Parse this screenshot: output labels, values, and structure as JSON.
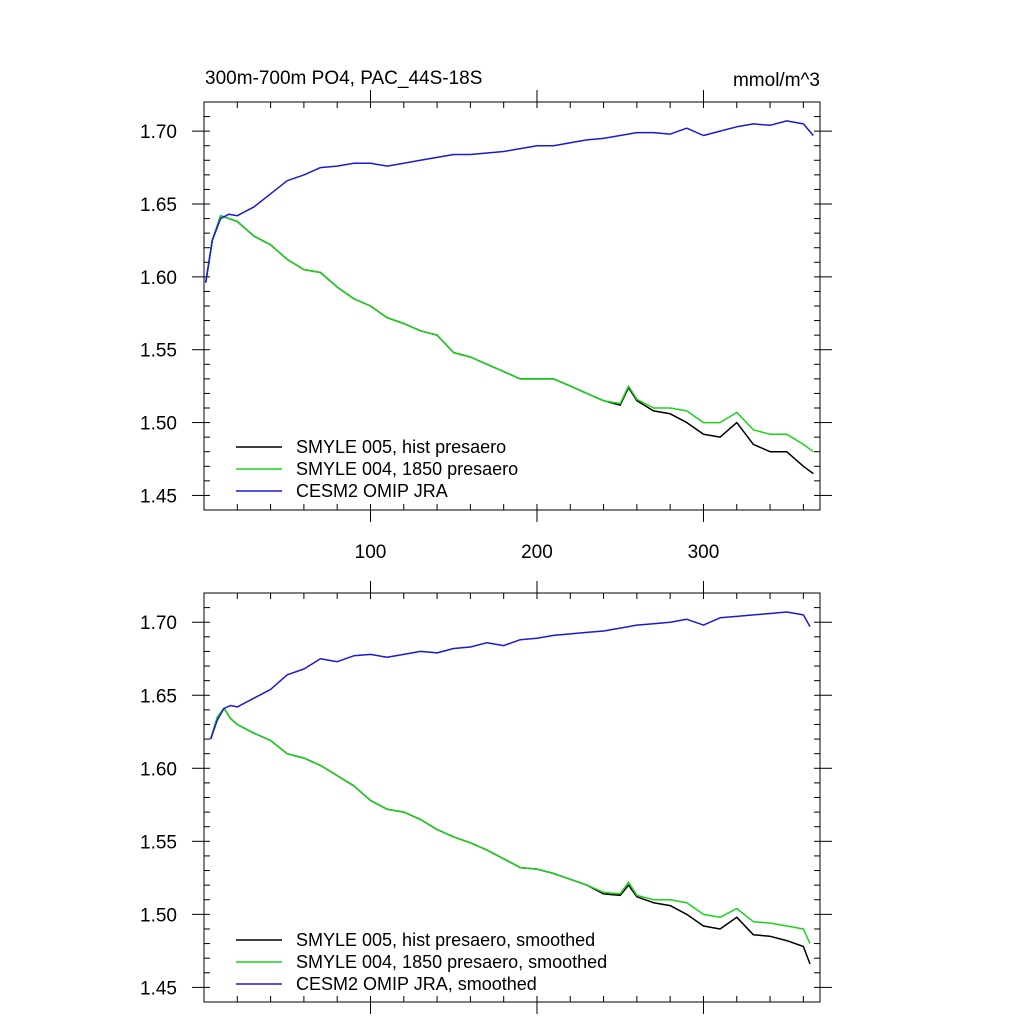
{
  "chart_data": [
    {
      "type": "line",
      "title": "300m-700m PO4, PAC_44S-18S",
      "units": "mmol/m^3",
      "xlim": [
        0,
        370
      ],
      "ylim": [
        1.44,
        1.72
      ],
      "x_ticks": [
        100,
        200,
        300
      ],
      "y_ticks": [
        1.45,
        1.5,
        1.55,
        1.6,
        1.65,
        1.7
      ],
      "y_tick_labels": [
        "1.45",
        "1.50",
        "1.55",
        "1.60",
        "1.65",
        "1.70"
      ],
      "x_tick_labels": [
        "100",
        "200",
        "300"
      ],
      "legend_position": "bottom-left",
      "series": [
        {
          "name": "SMYLE 005, hist presaero",
          "color": "#000000",
          "x": [
            1,
            5,
            10,
            15,
            20,
            30,
            40,
            50,
            60,
            70,
            80,
            90,
            100,
            110,
            120,
            130,
            140,
            150,
            160,
            170,
            180,
            190,
            200,
            210,
            220,
            230,
            240,
            250,
            255,
            260,
            270,
            280,
            290,
            300,
            310,
            320,
            330,
            340,
            350,
            360,
            366
          ],
          "y": [
            1.596,
            1.625,
            1.642,
            1.64,
            1.638,
            1.628,
            1.622,
            1.612,
            1.605,
            1.603,
            1.593,
            1.585,
            1.58,
            1.572,
            1.568,
            1.563,
            1.56,
            1.548,
            1.545,
            1.54,
            1.535,
            1.53,
            1.53,
            1.53,
            1.525,
            1.52,
            1.515,
            1.512,
            1.524,
            1.515,
            1.508,
            1.506,
            1.5,
            1.492,
            1.49,
            1.5,
            1.485,
            1.48,
            1.48,
            1.47,
            1.465
          ]
        },
        {
          "name": "SMYLE 004, 1850 presaero",
          "color": "#1ad41a",
          "x": [
            1,
            5,
            10,
            15,
            20,
            30,
            40,
            50,
            60,
            70,
            80,
            90,
            100,
            110,
            120,
            130,
            140,
            150,
            160,
            170,
            180,
            190,
            200,
            210,
            220,
            230,
            240,
            250,
            255,
            260,
            270,
            280,
            290,
            300,
            310,
            320,
            330,
            340,
            350,
            360,
            366
          ],
          "y": [
            1.596,
            1.625,
            1.642,
            1.64,
            1.638,
            1.628,
            1.622,
            1.612,
            1.605,
            1.603,
            1.593,
            1.585,
            1.58,
            1.572,
            1.568,
            1.563,
            1.56,
            1.548,
            1.545,
            1.54,
            1.535,
            1.53,
            1.53,
            1.53,
            1.525,
            1.52,
            1.515,
            1.513,
            1.525,
            1.516,
            1.51,
            1.51,
            1.508,
            1.5,
            1.5,
            1.507,
            1.495,
            1.492,
            1.492,
            1.485,
            1.48
          ]
        },
        {
          "name": "CESM2 OMIP JRA",
          "color": "#1a1ad4",
          "x": [
            1,
            5,
            10,
            15,
            20,
            30,
            40,
            50,
            60,
            70,
            80,
            90,
            100,
            110,
            120,
            130,
            140,
            150,
            160,
            170,
            180,
            190,
            200,
            210,
            220,
            230,
            240,
            250,
            260,
            270,
            280,
            290,
            300,
            310,
            320,
            330,
            340,
            350,
            360,
            366
          ],
          "y": [
            1.596,
            1.625,
            1.64,
            1.643,
            1.642,
            1.648,
            1.657,
            1.666,
            1.67,
            1.675,
            1.676,
            1.678,
            1.678,
            1.676,
            1.678,
            1.68,
            1.682,
            1.684,
            1.684,
            1.685,
            1.686,
            1.688,
            1.69,
            1.69,
            1.692,
            1.694,
            1.695,
            1.697,
            1.699,
            1.699,
            1.698,
            1.702,
            1.697,
            1.7,
            1.703,
            1.705,
            1.704,
            1.707,
            1.705,
            1.697
          ]
        }
      ]
    },
    {
      "type": "line",
      "xlim": [
        0,
        370
      ],
      "ylim": [
        1.44,
        1.72
      ],
      "x_ticks": [
        100,
        200,
        300
      ],
      "y_ticks": [
        1.45,
        1.5,
        1.55,
        1.6,
        1.65,
        1.7
      ],
      "y_tick_labels": [
        "1.45",
        "1.50",
        "1.55",
        "1.60",
        "1.65",
        "1.70"
      ],
      "legend_position": "bottom-left",
      "series": [
        {
          "name": "SMYLE 005, hist presaero, smoothed",
          "color": "#000000",
          "x": [
            4,
            8,
            12,
            16,
            20,
            30,
            40,
            50,
            60,
            70,
            80,
            90,
            100,
            110,
            120,
            130,
            140,
            150,
            160,
            170,
            180,
            190,
            200,
            210,
            220,
            230,
            240,
            250,
            255,
            260,
            270,
            280,
            290,
            300,
            310,
            320,
            330,
            340,
            350,
            360,
            364
          ],
          "y": [
            1.62,
            1.635,
            1.641,
            1.634,
            1.63,
            1.624,
            1.619,
            1.61,
            1.607,
            1.602,
            1.595,
            1.588,
            1.578,
            1.572,
            1.57,
            1.565,
            1.558,
            1.553,
            1.549,
            1.544,
            1.538,
            1.532,
            1.531,
            1.528,
            1.524,
            1.52,
            1.514,
            1.513,
            1.52,
            1.512,
            1.508,
            1.506,
            1.5,
            1.492,
            1.49,
            1.498,
            1.486,
            1.485,
            1.482,
            1.478,
            1.466
          ]
        },
        {
          "name": "SMYLE 004, 1850 presaero, smoothed",
          "color": "#1ad41a",
          "x": [
            4,
            8,
            12,
            16,
            20,
            30,
            40,
            50,
            60,
            70,
            80,
            90,
            100,
            110,
            120,
            130,
            140,
            150,
            160,
            170,
            180,
            190,
            200,
            210,
            220,
            230,
            240,
            250,
            255,
            260,
            270,
            280,
            290,
            300,
            310,
            320,
            330,
            340,
            350,
            360,
            364
          ],
          "y": [
            1.62,
            1.635,
            1.641,
            1.634,
            1.63,
            1.624,
            1.619,
            1.61,
            1.607,
            1.602,
            1.595,
            1.588,
            1.578,
            1.572,
            1.57,
            1.565,
            1.558,
            1.553,
            1.549,
            1.544,
            1.538,
            1.532,
            1.531,
            1.528,
            1.524,
            1.52,
            1.515,
            1.514,
            1.522,
            1.513,
            1.51,
            1.51,
            1.508,
            1.5,
            1.498,
            1.504,
            1.495,
            1.494,
            1.492,
            1.49,
            1.48
          ]
        },
        {
          "name": "CESM2 OMIP JRA, smoothed",
          "color": "#1a1ad4",
          "x": [
            4,
            8,
            12,
            16,
            20,
            30,
            40,
            50,
            60,
            70,
            80,
            90,
            100,
            110,
            120,
            130,
            140,
            150,
            160,
            170,
            180,
            190,
            200,
            210,
            220,
            230,
            240,
            250,
            260,
            270,
            280,
            290,
            300,
            310,
            320,
            330,
            340,
            350,
            360,
            364
          ],
          "y": [
            1.62,
            1.633,
            1.641,
            1.643,
            1.642,
            1.648,
            1.654,
            1.664,
            1.668,
            1.675,
            1.673,
            1.677,
            1.678,
            1.676,
            1.678,
            1.68,
            1.679,
            1.682,
            1.683,
            1.686,
            1.684,
            1.688,
            1.689,
            1.691,
            1.692,
            1.693,
            1.694,
            1.696,
            1.698,
            1.699,
            1.7,
            1.702,
            1.698,
            1.703,
            1.704,
            1.705,
            1.706,
            1.707,
            1.705,
            1.697
          ]
        }
      ]
    }
  ]
}
